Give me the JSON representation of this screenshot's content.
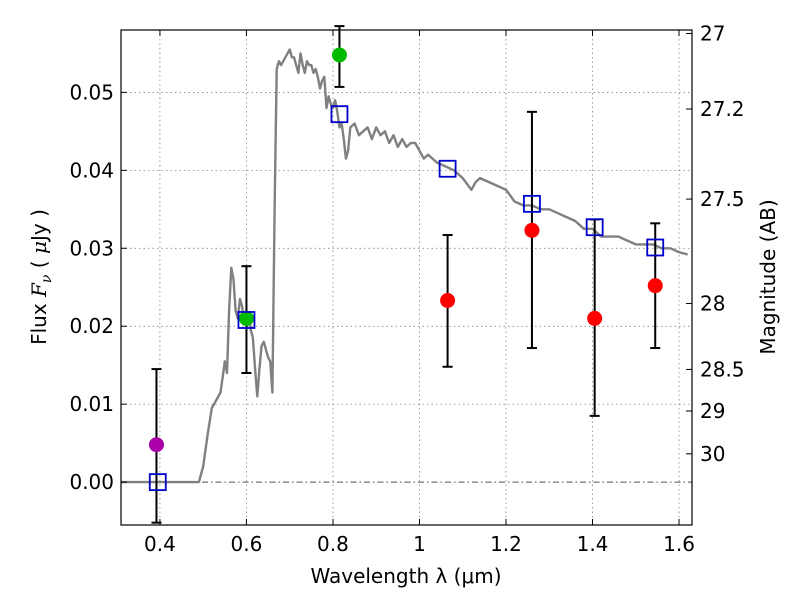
{
  "chart_data": {
    "type": "scatter",
    "title": "",
    "xlabel": "Wavelength  λ (μm)",
    "ylabel": "Flux  F_ν  ( μJy )",
    "ylabel_parts": {
      "pre": "Flux  ",
      "symbol": "F",
      "sub": "ν",
      "mid": "  ( ",
      "mu": "μ",
      "post": "Jy )"
    },
    "y2label": "Magnitude (AB)",
    "xlim": [
      0.31,
      1.63
    ],
    "ylim": [
      -0.0055,
      0.058
    ],
    "grid": true,
    "xticks": [
      {
        "value": 0.4,
        "label": "0.4"
      },
      {
        "value": 0.6,
        "label": "0.6"
      },
      {
        "value": 0.8,
        "label": "0.8"
      },
      {
        "value": 1.0,
        "label": "1"
      },
      {
        "value": 1.2,
        "label": "1.2"
      },
      {
        "value": 1.4,
        "label": "1.4"
      },
      {
        "value": 1.6,
        "label": "1.6"
      }
    ],
    "yticks": [
      {
        "value": 0.0,
        "label": "0.00"
      },
      {
        "value": 0.01,
        "label": "0.01"
      },
      {
        "value": 0.02,
        "label": "0.02"
      },
      {
        "value": 0.03,
        "label": "0.03"
      },
      {
        "value": 0.04,
        "label": "0.04"
      },
      {
        "value": 0.05,
        "label": "0.05"
      }
    ],
    "y2ticks": [
      {
        "value": 27.0,
        "label": "27"
      },
      {
        "value": 27.2,
        "label": "27.2"
      },
      {
        "value": 27.5,
        "label": "27.5"
      },
      {
        "value": 28.0,
        "label": "28"
      },
      {
        "value": 28.5,
        "label": "28.5"
      },
      {
        "value": 29.0,
        "label": "29"
      },
      {
        "value": 30.0,
        "label": "30"
      }
    ],
    "zero_line": {
      "value": 0.0,
      "color": "#555555"
    },
    "colors": {
      "model": "#808080",
      "model_points": "#0000cc",
      "detection_red": "#ff0000",
      "detection_green": "#00bb00",
      "detection_magenta": "#aa00aa",
      "errorbar": "#000000"
    },
    "series": [
      {
        "kind": "model_spectrum",
        "x": [
          0.31,
          0.49,
          0.5,
          0.51,
          0.52,
          0.53,
          0.54,
          0.545,
          0.55,
          0.555,
          0.56,
          0.565,
          0.57,
          0.575,
          0.58,
          0.585,
          0.59,
          0.595,
          0.6,
          0.605,
          0.61,
          0.615,
          0.62,
          0.625,
          0.63,
          0.635,
          0.64,
          0.645,
          0.65,
          0.655,
          0.66,
          0.665,
          0.67,
          0.675,
          0.68,
          0.69,
          0.7,
          0.705,
          0.71,
          0.715,
          0.72,
          0.725,
          0.73,
          0.735,
          0.74,
          0.745,
          0.75,
          0.755,
          0.76,
          0.765,
          0.77,
          0.775,
          0.78,
          0.785,
          0.79,
          0.795,
          0.8,
          0.805,
          0.81,
          0.815,
          0.82,
          0.825,
          0.83,
          0.835,
          0.84,
          0.85,
          0.86,
          0.87,
          0.88,
          0.89,
          0.9,
          0.91,
          0.92,
          0.93,
          0.94,
          0.95,
          0.96,
          0.97,
          0.98,
          0.99,
          1.0,
          1.01,
          1.02,
          1.04,
          1.06,
          1.08,
          1.1,
          1.12,
          1.13,
          1.14,
          1.16,
          1.18,
          1.2,
          1.22,
          1.24,
          1.26,
          1.28,
          1.3,
          1.32,
          1.34,
          1.36,
          1.38,
          1.4,
          1.42,
          1.44,
          1.46,
          1.48,
          1.5,
          1.52,
          1.54,
          1.56,
          1.58,
          1.6,
          1.62
        ],
        "y": [
          0.0,
          0.0,
          0.002,
          0.006,
          0.0095,
          0.0105,
          0.0115,
          0.0135,
          0.0155,
          0.014,
          0.022,
          0.0275,
          0.026,
          0.022,
          0.021,
          0.0235,
          0.0225,
          0.0205,
          0.021,
          0.0215,
          0.0195,
          0.0185,
          0.0145,
          0.011,
          0.0145,
          0.0175,
          0.018,
          0.017,
          0.016,
          0.0155,
          0.0115,
          0.035,
          0.053,
          0.054,
          0.0535,
          0.0545,
          0.0555,
          0.0545,
          0.0545,
          0.0535,
          0.0525,
          0.055,
          0.0535,
          0.0525,
          0.054,
          0.0535,
          0.0535,
          0.0525,
          0.053,
          0.052,
          0.0505,
          0.0515,
          0.052,
          0.048,
          0.0495,
          0.0485,
          0.048,
          0.049,
          0.0475,
          0.0455,
          0.046,
          0.044,
          0.0415,
          0.0425,
          0.0455,
          0.046,
          0.0445,
          0.045,
          0.0455,
          0.044,
          0.0455,
          0.0445,
          0.045,
          0.0435,
          0.0445,
          0.043,
          0.044,
          0.043,
          0.0435,
          0.0435,
          0.0425,
          0.0415,
          0.042,
          0.041,
          0.0405,
          0.04,
          0.039,
          0.0375,
          0.0385,
          0.039,
          0.0385,
          0.038,
          0.0375,
          0.036,
          0.0355,
          0.0355,
          0.035,
          0.035,
          0.0345,
          0.034,
          0.0335,
          0.0325,
          0.0325,
          0.0315,
          0.0315,
          0.0315,
          0.031,
          0.0305,
          0.0305,
          0.0305,
          0.03,
          0.03,
          0.0295,
          0.0292
        ]
      },
      {
        "kind": "model_points",
        "marker": "open-square",
        "x": [
          0.395,
          0.6,
          0.815,
          1.065,
          1.26,
          1.405,
          1.545
        ],
        "y": [
          0.0,
          0.0208,
          0.0472,
          0.0402,
          0.0357,
          0.0327,
          0.0301
        ]
      },
      {
        "kind": "observed",
        "marker": "filled-circle",
        "points": [
          {
            "x": 0.392,
            "y": 0.0048,
            "yerr_low": -0.0052,
            "yerr_high": 0.0145,
            "color": "magenta"
          },
          {
            "x": 0.6,
            "y": 0.021,
            "yerr_low": 0.014,
            "yerr_high": 0.0277,
            "color": "green"
          },
          {
            "x": 0.815,
            "y": 0.0548,
            "yerr_low": 0.0507,
            "yerr_high": 0.0585,
            "color": "green"
          },
          {
            "x": 1.065,
            "y": 0.0233,
            "yerr_low": 0.0148,
            "yerr_high": 0.0317,
            "color": "red"
          },
          {
            "x": 1.26,
            "y": 0.0323,
            "yerr_low": 0.0172,
            "yerr_high": 0.0475,
            "color": "red"
          },
          {
            "x": 1.405,
            "y": 0.021,
            "yerr_low": 0.0085,
            "yerr_high": 0.0337,
            "color": "red"
          },
          {
            "x": 1.545,
            "y": 0.0252,
            "yerr_low": 0.0172,
            "yerr_high": 0.0332,
            "color": "red"
          }
        ]
      }
    ]
  }
}
